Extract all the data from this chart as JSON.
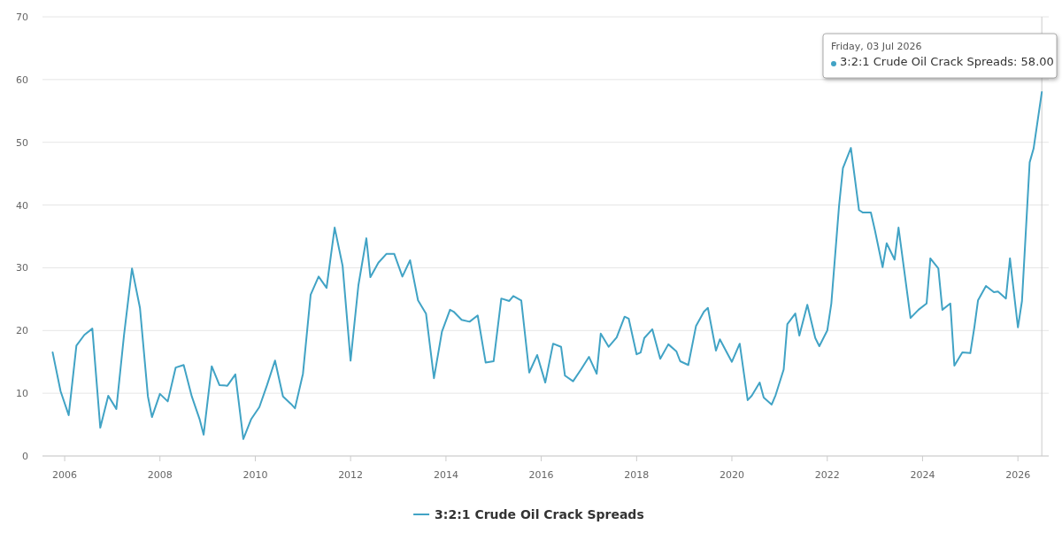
{
  "chart_data": {
    "type": "line",
    "x": [
      "2005-10",
      "2005-12",
      "2006-02",
      "2006-04",
      "2006-06",
      "2006-08",
      "2006-10",
      "2006-12",
      "2007-02",
      "2007-04",
      "2007-06",
      "2007-08",
      "2007-10",
      "2007-11",
      "2008-01",
      "2008-03",
      "2008-05",
      "2008-07",
      "2008-09",
      "2008-11",
      "2008-12",
      "2009-02",
      "2009-04",
      "2009-06",
      "2009-08",
      "2009-10",
      "2009-12",
      "2010-02",
      "2010-04",
      "2010-06",
      "2010-08",
      "2010-10",
      "2010-11",
      "2011-01",
      "2011-03",
      "2011-05",
      "2011-07",
      "2011-09",
      "2011-11",
      "2012-01",
      "2012-03",
      "2012-05",
      "2012-06",
      "2012-08",
      "2012-10",
      "2012-12",
      "2013-02",
      "2013-04",
      "2013-06",
      "2013-08",
      "2013-10",
      "2013-12",
      "2014-02",
      "2014-03",
      "2014-05",
      "2014-07",
      "2014-09",
      "2014-11",
      "2015-01",
      "2015-03",
      "2015-05",
      "2015-06",
      "2015-08",
      "2015-10",
      "2015-12",
      "2016-02",
      "2016-04",
      "2016-06",
      "2016-07",
      "2016-09",
      "2016-11",
      "2017-01",
      "2017-03",
      "2017-04",
      "2017-06",
      "2017-08",
      "2017-10",
      "2017-11",
      "2018-01",
      "2018-02",
      "2018-03",
      "2018-05",
      "2018-07",
      "2018-09",
      "2018-11",
      "2018-12",
      "2019-02",
      "2019-04",
      "2019-06",
      "2019-07",
      "2019-09",
      "2019-10",
      "2019-12",
      "2020-01",
      "2020-03",
      "2020-05",
      "2020-06",
      "2020-08",
      "2020-09",
      "2020-11",
      "2020-12",
      "2021-02",
      "2021-03",
      "2021-05",
      "2021-06",
      "2021-08",
      "2021-10",
      "2021-11",
      "2022-01",
      "2022-02",
      "2022-04",
      "2022-05",
      "2022-07",
      "2022-09",
      "2022-10",
      "2022-12",
      "2023-01",
      "2023-03",
      "2023-04",
      "2023-06",
      "2023-07",
      "2023-10",
      "2023-12",
      "2024-02",
      "2024-03",
      "2024-05",
      "2024-06",
      "2024-08",
      "2024-09",
      "2024-11",
      "2025-01",
      "2025-02",
      "2025-03",
      "2025-05",
      "2025-07",
      "2025-08",
      "2025-10",
      "2025-11",
      "2026-01",
      "2026-02",
      "2026-04",
      "2026-05",
      "2026-07-03"
    ],
    "series": [
      {
        "name": "3:2:1 Crude Oil Crack Spreads",
        "color": "#41a3c5",
        "values": [
          16.5,
          10.3,
          6.5,
          17.6,
          19.3,
          20.3,
          4.5,
          9.6,
          7.5,
          19.3,
          29.9,
          23.6,
          9.5,
          6.2,
          9.9,
          8.7,
          14.1,
          14.5,
          9.5,
          5.8,
          3.4,
          14.3,
          11.3,
          11.2,
          13,
          2.7,
          5.9,
          7.8,
          11.3,
          15.2,
          9.5,
          8.3,
          7.6,
          13.1,
          25.7,
          28.6,
          26.8,
          36.4,
          30.3,
          15.2,
          27.2,
          34.7,
          28.5,
          30.8,
          32.2,
          32.2,
          28.6,
          31.2,
          24.8,
          22.7,
          12.4,
          19.8,
          23.3,
          23.0,
          21.7,
          21.4,
          22.4,
          14.9,
          15.1,
          25.1,
          24.7,
          25.5,
          24.8,
          13.3,
          16.1,
          11.7,
          17.9,
          17.4,
          12.8,
          11.9,
          13.8,
          15.8,
          13.1,
          19.5,
          17.4,
          18.9,
          22.2,
          21.9,
          16.2,
          16.5,
          18.8,
          20.2,
          15.5,
          17.8,
          16.7,
          15.1,
          14.5,
          20.7,
          23.0,
          23.6,
          16.8,
          18.6,
          16.2,
          15.0,
          17.9,
          8.9,
          9.6,
          11.7,
          9.3,
          8.2,
          9.7,
          13.8,
          21.0,
          22.7,
          19.2,
          24.1,
          18.8,
          17.5,
          20.0,
          24.3,
          39.8,
          45.9,
          49.1,
          39.2,
          38.8,
          38.8,
          36.0,
          30.1,
          33.9,
          31.3,
          36.4,
          22.0,
          23.3,
          24.3,
          31.5,
          29.9,
          23.3,
          24.3,
          14.4,
          16.5,
          16.4,
          20.5,
          24.8,
          27.1,
          26.1,
          26.2,
          25.1,
          31.5,
          20.5,
          24.7,
          46.8,
          49.0,
          58.0
        ]
      }
    ],
    "xlim": [
      "2005-07-15",
      "2026-08-25"
    ],
    "xticks": [
      {
        "value": "2006",
        "label": "2006"
      },
      {
        "value": "2008",
        "label": "2008"
      },
      {
        "value": "2010",
        "label": "2010"
      },
      {
        "value": "2012",
        "label": "2012"
      },
      {
        "value": "2014",
        "label": "2014"
      },
      {
        "value": "2016",
        "label": "2016"
      },
      {
        "value": "2018",
        "label": "2018"
      },
      {
        "value": "2020",
        "label": "2020"
      },
      {
        "value": "2022",
        "label": "2022"
      },
      {
        "value": "2024",
        "label": "2024"
      },
      {
        "value": "2026",
        "label": "2026"
      }
    ],
    "ylim": [
      0,
      70
    ],
    "yticks": [
      0,
      10,
      20,
      30,
      40,
      50,
      60,
      70
    ],
    "grid": "y",
    "legend": "bottom",
    "line_style": "solid",
    "marker": "none",
    "ref_lines": [
      {
        "axis": "x",
        "value": "2026-07-03",
        "color": "#cccccc"
      }
    ],
    "annotations": [
      "Friday, 03 Jul 2026",
      "3:2:1 Crude Oil Crack Spreads: 58.00"
    ]
  }
}
